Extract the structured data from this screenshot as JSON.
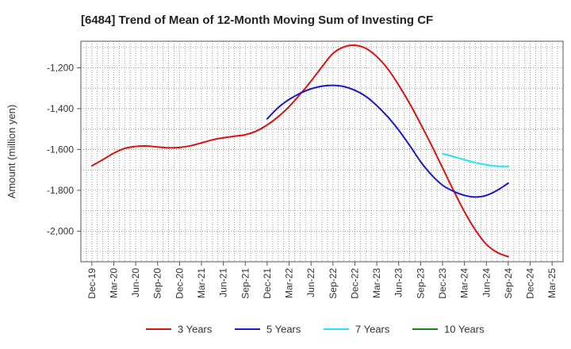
{
  "chart_data": {
    "type": "line",
    "title": "[6484]  Trend of Mean of 12-Month Moving Sum of Investing CF",
    "xlabel": "",
    "ylabel": "Amount (million yen)",
    "ylim": [
      -2150,
      -1070
    ],
    "yticks": [
      -1200,
      -1400,
      -1600,
      -1800,
      -2000
    ],
    "ytick_labels": [
      "-1,200",
      "-1,400",
      "-1,600",
      "-1,800",
      "-2,000"
    ],
    "grid": true,
    "legend_position": "bottom",
    "x_categories": [
      "Dec-19",
      "Mar-20",
      "Jun-20",
      "Sep-20",
      "Dec-20",
      "Mar-21",
      "Jun-21",
      "Sep-21",
      "Dec-21",
      "Mar-22",
      "Jun-22",
      "Sep-22",
      "Dec-22",
      "Mar-23",
      "Jun-23",
      "Sep-23",
      "Dec-23",
      "Mar-24",
      "Jun-24",
      "Sep-24",
      "Dec-24",
      "Mar-25"
    ],
    "series": [
      {
        "name": "3 Years",
        "color": "#dd1111",
        "x": [
          0,
          0.5,
          1,
          1.5,
          2,
          2.5,
          3,
          3.5,
          4,
          4.5,
          5,
          5.5,
          6,
          6.5,
          7,
          7.5,
          8,
          8.5,
          9,
          9.5,
          10,
          10.5,
          11,
          11.5,
          12,
          12.5,
          13,
          13.5,
          14,
          14.5,
          15,
          15.5,
          16,
          16.5,
          17,
          17.5,
          18,
          18.5,
          19
        ],
        "values": [
          -1680,
          -1650,
          -1618,
          -1595,
          -1585,
          -1583,
          -1588,
          -1592,
          -1590,
          -1582,
          -1568,
          -1553,
          -1543,
          -1535,
          -1528,
          -1510,
          -1480,
          -1440,
          -1390,
          -1330,
          -1265,
          -1195,
          -1130,
          -1098,
          -1090,
          -1105,
          -1145,
          -1205,
          -1285,
          -1375,
          -1475,
          -1580,
          -1690,
          -1800,
          -1905,
          -1995,
          -2065,
          -2105,
          -2125
        ]
      },
      {
        "name": "5 Years",
        "color": "#1a1acc",
        "x": [
          8,
          8.5,
          9,
          9.5,
          10,
          10.5,
          11,
          11.5,
          12,
          12.5,
          13,
          13.5,
          14,
          14.5,
          15,
          15.5,
          16,
          16.5,
          17,
          17.5,
          18,
          18.5,
          19
        ],
        "values": [
          -1450,
          -1395,
          -1355,
          -1325,
          -1303,
          -1290,
          -1286,
          -1292,
          -1310,
          -1340,
          -1385,
          -1440,
          -1505,
          -1580,
          -1660,
          -1725,
          -1775,
          -1805,
          -1825,
          -1833,
          -1825,
          -1800,
          -1765
        ]
      },
      {
        "name": "7 Years",
        "color": "#22e6ee",
        "x": [
          16,
          16.5,
          17,
          17.5,
          18,
          18.5,
          19
        ],
        "values": [
          -1620,
          -1635,
          -1650,
          -1665,
          -1675,
          -1682,
          -1683
        ]
      },
      {
        "name": "10 Years",
        "color": "#118811",
        "x": [],
        "values": []
      }
    ]
  }
}
